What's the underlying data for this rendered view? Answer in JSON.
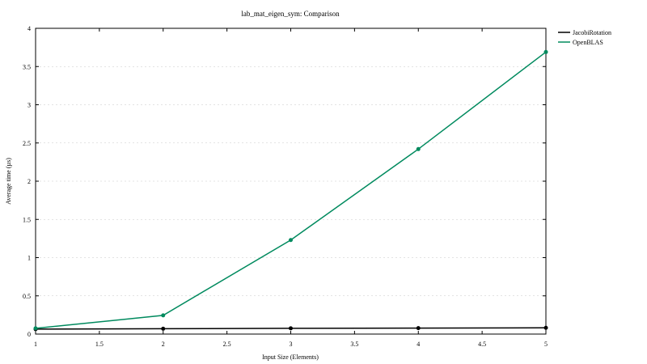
{
  "chart_data": {
    "type": "line",
    "title": "lab_mat_eigen_sym: Comparison",
    "xlabel": "Input Size (Elements)",
    "ylabel": "Average time (µs)",
    "xlim": [
      1,
      5
    ],
    "ylim": [
      0,
      4
    ],
    "x_ticks": [
      "1",
      "1.5",
      "2",
      "2.5",
      "3",
      "3.5",
      "4",
      "4.5",
      "5"
    ],
    "y_ticks": [
      "0",
      "0.5",
      "1",
      "1.5",
      "2",
      "2.5",
      "3",
      "3.5",
      "4"
    ],
    "grid": true,
    "legend_position": "top-right outside",
    "series": [
      {
        "name": "JacobiRotation",
        "color": "#000000",
        "x": [
          1,
          2,
          3,
          4,
          5
        ],
        "values": [
          0.065,
          0.07,
          0.075,
          0.078,
          0.082
        ]
      },
      {
        "name": "OpenBLAS",
        "color": "#008a5e",
        "x": [
          1,
          2,
          3,
          4,
          5
        ],
        "values": [
          0.075,
          0.245,
          1.23,
          2.42,
          3.69
        ]
      }
    ]
  }
}
